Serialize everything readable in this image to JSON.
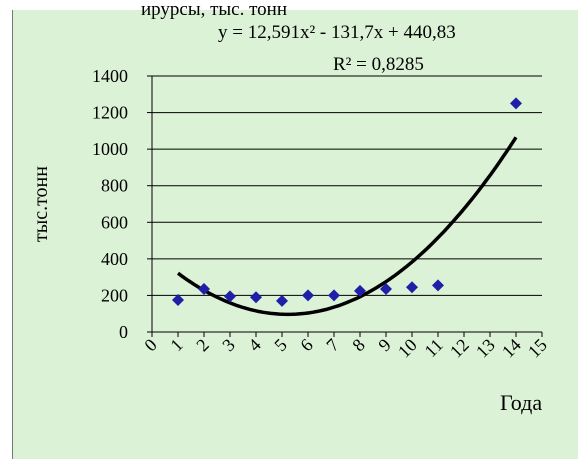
{
  "top_cut_text": "ирурсы, тыс. тонн",
  "equation": "y = 12,591x² - 131,7x + 440,83",
  "r_squared": "R² = 0,8285",
  "chart_data": {
    "type": "scatter",
    "xlabel": "Года",
    "ylabel": "тыс.тонн",
    "xlim": [
      0,
      15
    ],
    "ylim": [
      0,
      1400
    ],
    "x_ticks": [
      0,
      1,
      2,
      3,
      4,
      5,
      6,
      7,
      8,
      9,
      10,
      11,
      12,
      13,
      14,
      15
    ],
    "y_ticks": [
      0,
      200,
      400,
      600,
      800,
      1000,
      1200,
      1400
    ],
    "y_tick_labels": [
      "0",
      "200",
      "400",
      "600",
      "800",
      "1000",
      "1200",
      "1400"
    ],
    "grid": "horizontal",
    "series": [
      {
        "x": [
          1,
          2,
          3,
          4,
          5,
          6,
          7,
          8,
          9,
          10,
          11,
          14
        ],
        "values": [
          175,
          235,
          195,
          190,
          170,
          200,
          200,
          225,
          235,
          245,
          255,
          1250
        ],
        "color": "#1f1fa8"
      }
    ],
    "trendline": {
      "type": "polynomial",
      "a": 12.591,
      "b": -131.7,
      "c": 440.83,
      "x_range": [
        1,
        14
      ],
      "color": "#000000"
    },
    "background_color": "#dcf2d7"
  }
}
